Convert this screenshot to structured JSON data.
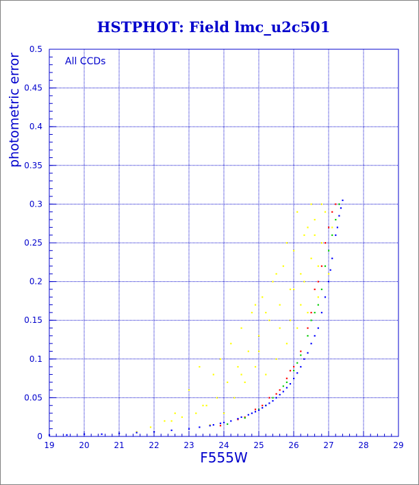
{
  "chart_data": {
    "type": "scatter",
    "title": "HSTPHOT: Field lmc_u2c501",
    "xlabel": "F555W",
    "ylabel": "photometric error",
    "annotation": "All CCDs",
    "xlim": [
      19,
      29
    ],
    "ylim": [
      0,
      0.5
    ],
    "xticks": [
      "19",
      "20",
      "21",
      "22",
      "23",
      "24",
      "25",
      "26",
      "27",
      "28",
      "29"
    ],
    "yticks": [
      "0",
      "0.05",
      "0.1",
      "0.15",
      "0.2",
      "0.25",
      "0.3",
      "0.35",
      "0.4",
      "0.45",
      "0.5"
    ],
    "grid": true,
    "colors": {
      "text": "#0000cc",
      "axis": "#0000cc",
      "grid": "#0000cc",
      "points_yellow": "#ffff00",
      "points_red": "#ff0000",
      "points_green": "#00cc00",
      "points_blue": "#0000ff"
    },
    "series": [
      {
        "color": "#ffff00",
        "points": [
          [
            21.5,
            0.006
          ],
          [
            21.9,
            0.012
          ],
          [
            22.3,
            0.02
          ],
          [
            22.6,
            0.03
          ],
          [
            22.8,
            0.025
          ],
          [
            23.0,
            0.06
          ],
          [
            23.2,
            0.03
          ],
          [
            23.3,
            0.09
          ],
          [
            23.5,
            0.04
          ],
          [
            23.6,
            0.015
          ],
          [
            23.7,
            0.08
          ],
          [
            23.8,
            0.05
          ],
          [
            23.9,
            0.1
          ],
          [
            24.0,
            0.03
          ],
          [
            24.1,
            0.07
          ],
          [
            24.2,
            0.12
          ],
          [
            24.3,
            0.05
          ],
          [
            24.4,
            0.09
          ],
          [
            24.5,
            0.14
          ],
          [
            24.6,
            0.07
          ],
          [
            24.7,
            0.11
          ],
          [
            24.8,
            0.16
          ],
          [
            24.9,
            0.09
          ],
          [
            25.0,
            0.13
          ],
          [
            25.1,
            0.18
          ],
          [
            25.2,
            0.08
          ],
          [
            25.3,
            0.15
          ],
          [
            25.4,
            0.2
          ],
          [
            25.5,
            0.1
          ],
          [
            25.6,
            0.17
          ],
          [
            25.7,
            0.22
          ],
          [
            25.8,
            0.12
          ],
          [
            25.9,
            0.19
          ],
          [
            26.0,
            0.24
          ],
          [
            26.1,
            0.14
          ],
          [
            26.2,
            0.21
          ],
          [
            26.3,
            0.26
          ],
          [
            26.4,
            0.16
          ],
          [
            26.5,
            0.23
          ],
          [
            26.6,
            0.28
          ],
          [
            26.7,
            0.18
          ],
          [
            26.8,
            0.25
          ],
          [
            26.9,
            0.29
          ],
          [
            27.0,
            0.21
          ],
          [
            27.1,
            0.27
          ],
          [
            26.2,
            0.17
          ],
          [
            25.8,
            0.25
          ],
          [
            25.5,
            0.21
          ],
          [
            26.5,
            0.3
          ],
          [
            26.0,
            0.19
          ],
          [
            25.2,
            0.16
          ],
          [
            24.9,
            0.17
          ],
          [
            26.7,
            0.22
          ],
          [
            26.3,
            0.2
          ],
          [
            25.9,
            0.15
          ],
          [
            26.8,
            0.3
          ],
          [
            26.4,
            0.27
          ],
          [
            25.6,
            0.14
          ],
          [
            25.0,
            0.11
          ],
          [
            24.5,
            0.08
          ],
          [
            23.4,
            0.04
          ],
          [
            22.5,
            0.02
          ],
          [
            26.1,
            0.29
          ],
          [
            26.6,
            0.26
          ]
        ]
      },
      {
        "color": "#ff0000",
        "points": [
          [
            23.9,
            0.014
          ],
          [
            24.4,
            0.022
          ],
          [
            24.9,
            0.035
          ],
          [
            25.3,
            0.05
          ],
          [
            25.6,
            0.06
          ],
          [
            25.8,
            0.075
          ],
          [
            26.0,
            0.09
          ],
          [
            26.2,
            0.11
          ],
          [
            26.4,
            0.14
          ],
          [
            26.5,
            0.16
          ],
          [
            26.6,
            0.19
          ],
          [
            26.8,
            0.22
          ],
          [
            26.9,
            0.25
          ],
          [
            27.0,
            0.27
          ],
          [
            27.1,
            0.29
          ],
          [
            26.3,
            0.1
          ],
          [
            25.9,
            0.085
          ],
          [
            26.7,
            0.2
          ],
          [
            25.5,
            0.055
          ],
          [
            25.1,
            0.04
          ],
          [
            24.6,
            0.025
          ],
          [
            27.2,
            0.3
          ]
        ]
      },
      {
        "color": "#00cc00",
        "points": [
          [
            24.1,
            0.016
          ],
          [
            24.6,
            0.024
          ],
          [
            25.0,
            0.035
          ],
          [
            25.4,
            0.05
          ],
          [
            25.7,
            0.065
          ],
          [
            26.0,
            0.085
          ],
          [
            26.2,
            0.105
          ],
          [
            26.4,
            0.13
          ],
          [
            26.6,
            0.16
          ],
          [
            26.8,
            0.19
          ],
          [
            26.9,
            0.22
          ],
          [
            27.0,
            0.24
          ],
          [
            27.1,
            0.26
          ],
          [
            27.2,
            0.28
          ],
          [
            27.3,
            0.3
          ],
          [
            26.5,
            0.15
          ],
          [
            26.1,
            0.095
          ],
          [
            25.8,
            0.07
          ],
          [
            25.2,
            0.04
          ],
          [
            26.7,
            0.17
          ]
        ]
      },
      {
        "color": "#0000ff",
        "points": [
          [
            19.0,
            0.002
          ],
          [
            19.5,
            0.002
          ],
          [
            20.0,
            0.003
          ],
          [
            20.5,
            0.003
          ],
          [
            21.0,
            0.004
          ],
          [
            21.5,
            0.005
          ],
          [
            22.0,
            0.006
          ],
          [
            22.5,
            0.008
          ],
          [
            23.0,
            0.01
          ],
          [
            23.3,
            0.012
          ],
          [
            23.6,
            0.014
          ],
          [
            23.9,
            0.017
          ],
          [
            24.2,
            0.02
          ],
          [
            24.5,
            0.025
          ],
          [
            24.8,
            0.03
          ],
          [
            25.0,
            0.034
          ],
          [
            25.2,
            0.04
          ],
          [
            25.4,
            0.046
          ],
          [
            25.6,
            0.054
          ],
          [
            25.8,
            0.063
          ],
          [
            26.0,
            0.075
          ],
          [
            26.2,
            0.09
          ],
          [
            26.4,
            0.108
          ],
          [
            26.6,
            0.13
          ],
          [
            26.8,
            0.16
          ],
          [
            26.9,
            0.18
          ],
          [
            27.0,
            0.2
          ],
          [
            27.1,
            0.23
          ],
          [
            27.2,
            0.26
          ],
          [
            27.3,
            0.285
          ],
          [
            27.4,
            0.305
          ],
          [
            26.7,
            0.14
          ],
          [
            26.5,
            0.12
          ],
          [
            26.3,
            0.1
          ],
          [
            26.1,
            0.082
          ],
          [
            25.9,
            0.068
          ],
          [
            25.7,
            0.058
          ],
          [
            25.5,
            0.05
          ],
          [
            25.3,
            0.043
          ],
          [
            25.1,
            0.037
          ],
          [
            24.9,
            0.032
          ],
          [
            24.7,
            0.028
          ],
          [
            24.4,
            0.023
          ],
          [
            24.0,
            0.018
          ],
          [
            23.7,
            0.015
          ],
          [
            27.25,
            0.27
          ],
          [
            27.35,
            0.295
          ],
          [
            27.05,
            0.215
          ]
        ]
      }
    ]
  }
}
